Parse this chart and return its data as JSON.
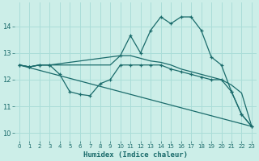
{
  "title": "",
  "xlabel": "Humidex (Indice chaleur)",
  "background_color": "#cceee8",
  "grid_color": "#aaddd8",
  "line_color": "#1a6b6b",
  "xlim": [
    -0.5,
    23.5
  ],
  "ylim": [
    9.7,
    14.9
  ],
  "yticks": [
    10,
    11,
    12,
    13,
    14
  ],
  "xticks": [
    0,
    1,
    2,
    3,
    4,
    5,
    6,
    7,
    8,
    9,
    10,
    11,
    12,
    13,
    14,
    15,
    16,
    17,
    18,
    19,
    20,
    21,
    22,
    23
  ],
  "lines": [
    {
      "x": [
        0,
        1,
        2,
        3,
        10,
        11,
        12,
        13,
        14,
        15,
        16,
        17,
        18,
        19,
        20,
        21,
        22,
        23
      ],
      "y": [
        12.55,
        12.48,
        12.55,
        12.55,
        12.9,
        13.65,
        13.0,
        13.85,
        14.35,
        14.1,
        14.35,
        14.35,
        13.85,
        12.85,
        12.55,
        11.55,
        10.7,
        10.25
      ],
      "markers": true
    },
    {
      "x": [
        0,
        1,
        2,
        3,
        4,
        5,
        6,
        7,
        8,
        9,
        10,
        11,
        12,
        13,
        14,
        15,
        16,
        17,
        18,
        19,
        20,
        21,
        22,
        23
      ],
      "y": [
        12.55,
        12.48,
        12.55,
        12.55,
        12.55,
        12.55,
        12.55,
        12.55,
        12.55,
        12.55,
        12.9,
        12.9,
        12.8,
        12.7,
        12.65,
        12.55,
        12.4,
        12.3,
        12.2,
        12.1,
        12.0,
        11.8,
        11.5,
        10.25
      ],
      "markers": false
    },
    {
      "x": [
        0,
        1,
        2,
        3,
        4,
        5,
        6,
        7,
        8,
        9,
        10,
        11,
        12,
        13,
        14,
        15,
        16,
        17,
        18,
        19,
        20,
        21,
        22,
        23
      ],
      "y": [
        12.55,
        12.48,
        12.55,
        12.55,
        12.2,
        11.55,
        11.45,
        11.4,
        11.85,
        12.0,
        12.55,
        12.55,
        12.55,
        12.55,
        12.55,
        12.4,
        12.3,
        12.2,
        12.1,
        12.0,
        12.0,
        11.55,
        10.7,
        10.25
      ],
      "markers": true
    },
    {
      "x": [
        0,
        23
      ],
      "y": [
        12.55,
        10.25
      ],
      "markers": false
    }
  ]
}
